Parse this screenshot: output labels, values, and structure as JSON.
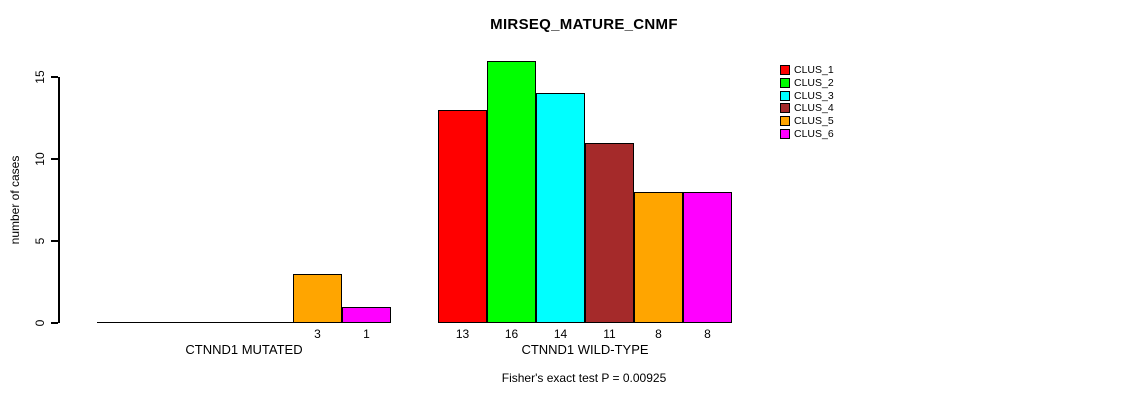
{
  "figure": {
    "title": "MIRSEQ_MATURE_CNMF",
    "subtitle": "Fisher's exact test P = 0.00925"
  },
  "y_axis": {
    "label": "number of cases",
    "ticks": [
      "0",
      "5",
      "10",
      "15"
    ]
  },
  "x_axis": {
    "group_labels": [
      "CTNND1 MUTATED",
      "CTNND1 WILD-TYPE"
    ]
  },
  "legend": {
    "entries": [
      {
        "label": "CLUS_1",
        "color": "#FF0000"
      },
      {
        "label": "CLUS_2",
        "color": "#00FF00"
      },
      {
        "label": "CLUS_3",
        "color": "#00FFFF"
      },
      {
        "label": "CLUS_4",
        "color": "#A52A2A"
      },
      {
        "label": "CLUS_5",
        "color": "#FFA500"
      },
      {
        "label": "CLUS_6",
        "color": "#FF00FF"
      }
    ]
  },
  "chart_data": {
    "type": "bar",
    "title": "MIRSEQ_MATURE_CNMF",
    "xlabel": "",
    "ylabel": "number of cases",
    "ylim": [
      0,
      16
    ],
    "yticks": [
      0,
      5,
      10,
      15
    ],
    "grid": false,
    "legend_position": "right",
    "annotation": "Fisher's exact test P = 0.00925",
    "categories": [
      "CTNND1 MUTATED",
      "CTNND1 WILD-TYPE"
    ],
    "series": [
      {
        "name": "CLUS_1",
        "color": "#FF0000",
        "values": [
          0,
          13
        ]
      },
      {
        "name": "CLUS_2",
        "color": "#00FF00",
        "values": [
          0,
          16
        ]
      },
      {
        "name": "CLUS_3",
        "color": "#00FFFF",
        "values": [
          0,
          14
        ]
      },
      {
        "name": "CLUS_4",
        "color": "#A52A2A",
        "values": [
          0,
          11
        ]
      },
      {
        "name": "CLUS_5",
        "color": "#FFA500",
        "values": [
          3,
          8
        ]
      },
      {
        "name": "CLUS_6",
        "color": "#FF00FF",
        "values": [
          1,
          8
        ]
      }
    ]
  }
}
